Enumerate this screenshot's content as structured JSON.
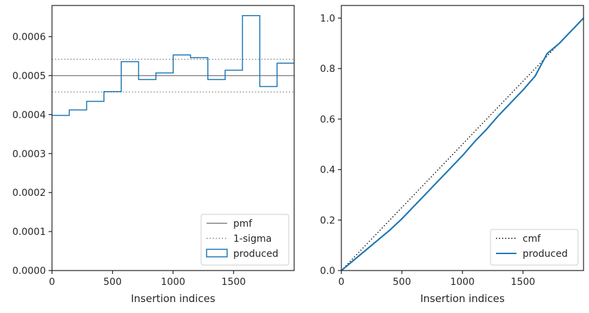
{
  "chart_data": [
    {
      "type": "histogram-step",
      "xlabel": "Insertion indices",
      "ylabel": "",
      "xlim": [
        0,
        2000
      ],
      "ylim": [
        0,
        0.00068
      ],
      "xticks": [
        0,
        500,
        1000,
        1500
      ],
      "xtick_labels": [
        "0",
        "500",
        "1000",
        "1500"
      ],
      "yticks": [
        0.0,
        0.0001,
        0.0002,
        0.0003,
        0.0004,
        0.0005,
        0.0006
      ],
      "ytick_labels": [
        "0.0000",
        "0.0001",
        "0.0002",
        "0.0003",
        "0.0004",
        "0.0005",
        "0.0006"
      ],
      "grid": false,
      "legend_position": "bottom-right",
      "bin_edges": [
        0,
        143,
        286,
        429,
        572,
        715,
        858,
        1001,
        1144,
        1287,
        1430,
        1573,
        1716,
        1859,
        2000
      ],
      "series": [
        {
          "name": "pmf",
          "kind": "hline",
          "value": 0.0005,
          "color": "#808080",
          "dash": "solid"
        },
        {
          "name": "1-sigma",
          "kind": "hlines",
          "values": [
            0.000458,
            0.000542
          ],
          "color": "#808080",
          "dash": "dotted"
        },
        {
          "name": "produced",
          "kind": "step",
          "color": "#1f77b4",
          "values": [
            0.000398,
            0.000412,
            0.000434,
            0.000459,
            0.000536,
            0.00049,
            0.000507,
            0.000553,
            0.000546,
            0.00049,
            0.000514,
            0.000654,
            0.000472,
            0.000532
          ]
        }
      ]
    },
    {
      "type": "line",
      "xlabel": "Insertion indices",
      "ylabel": "",
      "xlim": [
        0,
        2000
      ],
      "ylim": [
        0,
        1.05
      ],
      "xticks": [
        0,
        500,
        1000,
        1500
      ],
      "xtick_labels": [
        "0",
        "500",
        "1000",
        "1500"
      ],
      "yticks": [
        0.0,
        0.2,
        0.4,
        0.6,
        0.8,
        1.0
      ],
      "ytick_labels": [
        "0.0",
        "0.2",
        "0.4",
        "0.6",
        "0.8",
        "1.0"
      ],
      "grid": false,
      "legend_position": "bottom-right",
      "series": [
        {
          "name": "cmf",
          "color": "#000000",
          "dash": "dotted",
          "x": [
            0,
            2000
          ],
          "y": [
            0,
            1.0
          ]
        },
        {
          "name": "produced",
          "color": "#1f77b4",
          "dash": "solid",
          "x": [
            0,
            100,
            200,
            300,
            400,
            500,
            600,
            700,
            800,
            900,
            1000,
            1100,
            1200,
            1300,
            1400,
            1500,
            1600,
            1700,
            1800,
            1900,
            2000
          ],
          "y": [
            0,
            0.04,
            0.08,
            0.12,
            0.16,
            0.205,
            0.255,
            0.305,
            0.355,
            0.405,
            0.455,
            0.51,
            0.56,
            0.615,
            0.665,
            0.715,
            0.77,
            0.86,
            0.9,
            0.95,
            1.0
          ]
        }
      ]
    }
  ]
}
